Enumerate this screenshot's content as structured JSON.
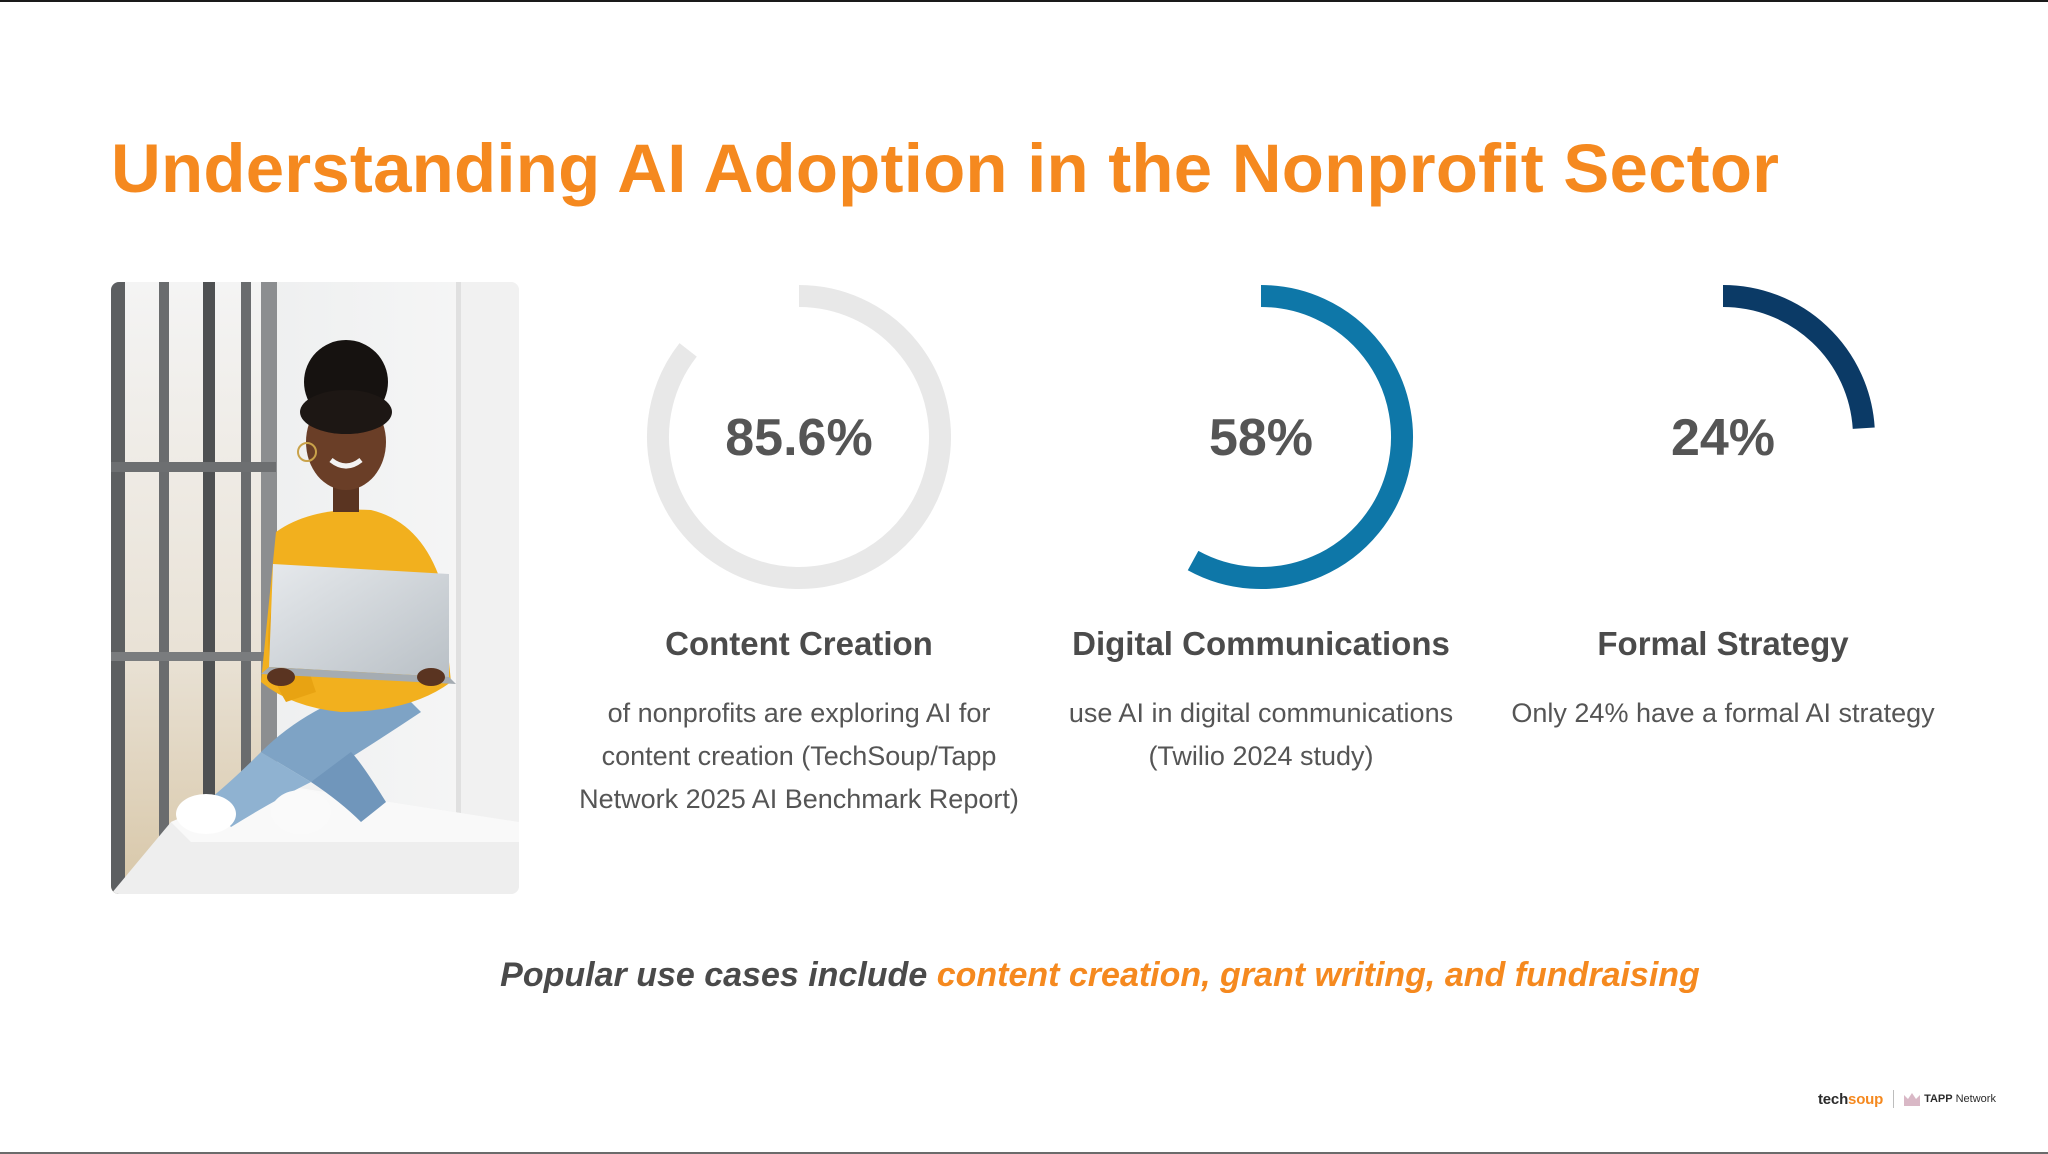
{
  "slide": {
    "title": "Understanding AI Adoption in the Nonprofit Sector",
    "tagline_prefix": "Popular use cases include ",
    "tagline_highlight": "content creation, grant writing, and fundraising"
  },
  "colors": {
    "accent_orange": "#f5891f",
    "ring_track": "#e8e8e8",
    "ring_blue": "#0e77a8",
    "ring_navy": "#0b3a66",
    "text_gray": "#555555"
  },
  "chart_data": [
    {
      "type": "pie",
      "subtype": "progress-ring",
      "value": 85.6,
      "max": 100,
      "value_label": "85.6%",
      "title": "Content Creation",
      "description": "of nonprofits are exploring AI for content creation (TechSoup/Tapp Network 2025 AI Benchmark Report)"
    },
    {
      "type": "pie",
      "subtype": "progress-ring",
      "value": 58,
      "max": 100,
      "value_label": "58%",
      "title": "Digital Communications",
      "description": "use AI in digital communications (Twilio 2024 study)"
    },
    {
      "type": "pie",
      "subtype": "progress-ring",
      "value": 24,
      "max": 100,
      "value_label": "24%",
      "title": "Formal Strategy",
      "description": "Only 24% have a formal AI strategy"
    }
  ],
  "footer": {
    "logo_techsoup_a": "tech",
    "logo_techsoup_b": "soup",
    "logo_tapp_bold": "TAPP",
    "logo_tapp_rest": "Network"
  },
  "icons": {
    "photo": "woman-with-laptop-photo",
    "tapp_logo_mark": "tapp-crown-icon"
  }
}
